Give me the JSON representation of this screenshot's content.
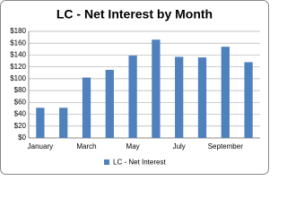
{
  "chart_data": {
    "type": "bar",
    "title": "LC - Net Interest by Month",
    "categories": [
      "January",
      null,
      "March",
      null,
      "May",
      null,
      "July",
      null,
      "September",
      null
    ],
    "series": [
      {
        "name": "LC - Net Interest",
        "color": "#4f81bd",
        "values": [
          51,
          51,
          102,
          115,
          139,
          166,
          137,
          136,
          154,
          128
        ]
      }
    ],
    "ylim": [
      0,
      180
    ],
    "yticks": [
      {
        "value": 0,
        "label": "$0"
      },
      {
        "value": 20,
        "label": "$20"
      },
      {
        "value": 40,
        "label": "$40"
      },
      {
        "value": 60,
        "label": "$60"
      },
      {
        "value": 80,
        "label": "$80"
      },
      {
        "value": 100,
        "label": "$100"
      },
      {
        "value": 120,
        "label": "$120"
      },
      {
        "value": 140,
        "label": "$140"
      },
      {
        "value": 160,
        "label": "$160"
      },
      {
        "value": 180,
        "label": "$180"
      }
    ],
    "grid": true,
    "legend": "bottom"
  }
}
